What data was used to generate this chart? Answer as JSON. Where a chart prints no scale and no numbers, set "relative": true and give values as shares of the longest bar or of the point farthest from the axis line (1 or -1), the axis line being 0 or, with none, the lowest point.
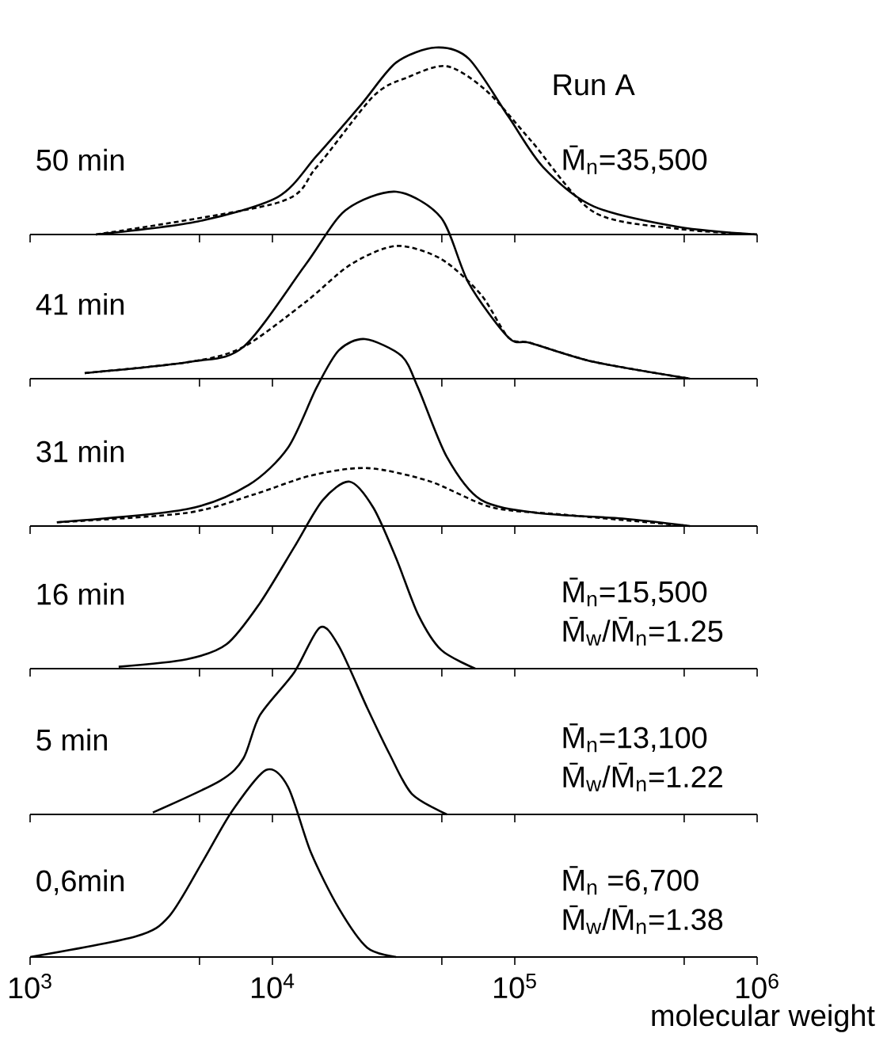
{
  "chart_data": [
    {
      "type": "line",
      "title": "50 min",
      "subtitle": "Run A",
      "annotations": [
        "M̄$_{n}$=35,500"
      ],
      "relative": true,
      "log": "x",
      "xlim": [
        1000,
        1000000
      ],
      "xticks": [
        {
          "value": 1000,
          "label": null
        },
        {
          "value": 5000,
          "label": null
        },
        {
          "value": 10000,
          "label": null
        },
        {
          "value": 50000,
          "label": null
        },
        {
          "value": 100000,
          "label": null
        },
        {
          "value": 500000,
          "label": null
        },
        {
          "value": 1000000,
          "label": null
        }
      ],
      "tick_labels": false,
      "series": [
        {
          "color": "#000000",
          "line_style": "solid",
          "x": [
            1870,
            4930,
            10500,
            15200,
            23400,
            32400,
            47100,
            64600,
            94200,
            131000,
            212000,
            475000,
            1000000
          ],
          "values": [
            0,
            0.07,
            0.2,
            0.42,
            0.7,
            0.92,
            1,
            0.94,
            0.63,
            0.36,
            0.15,
            0.04,
            0
          ]
        },
        {
          "color": "#000000",
          "line_style": "dashed",
          "x": [
            1870,
            10500,
            15200,
            26100,
            36000,
            52400,
            76200,
            117000,
            212000,
            475000,
            1000000
          ],
          "values": [
            0,
            0.17,
            0.36,
            0.74,
            0.84,
            0.9,
            0.77,
            0.5,
            0.12,
            0.03,
            0
          ]
        }
      ]
    },
    {
      "type": "line",
      "title": "41 min",
      "relative": true,
      "log": "x",
      "xlim": [
        1000,
        1000000
      ],
      "xticks": [
        {
          "value": 1000,
          "label": null
        },
        {
          "value": 5000,
          "label": null
        },
        {
          "value": 10000,
          "label": null
        },
        {
          "value": 50000,
          "label": null
        },
        {
          "value": 100000,
          "label": null
        },
        {
          "value": 500000,
          "label": null
        },
        {
          "value": 1000000,
          "label": null
        }
      ],
      "tick_labels": false,
      "series": [
        {
          "color": "#000000",
          "line_style": "solid",
          "x": [
            1680,
            4570,
            7590,
            13700,
            20000,
            32400,
            49700,
            64600,
            94200,
            117000,
            212000,
            528000
          ],
          "values": [
            0.03,
            0.09,
            0.17,
            0.61,
            0.9,
            1,
            0.86,
            0.51,
            0.22,
            0.19,
            0.09,
            0
          ]
        },
        {
          "color": "#000000",
          "line_style": "dashed",
          "x": [
            1680,
            4570,
            7590,
            13700,
            21000,
            32400,
            49700,
            72500,
            94200,
            117000,
            212000,
            528000
          ],
          "values": [
            0.03,
            0.09,
            0.17,
            0.41,
            0.61,
            0.71,
            0.64,
            0.45,
            0.22,
            0.19,
            0.09,
            0
          ]
        }
      ]
    },
    {
      "type": "line",
      "title": "31 min",
      "relative": true,
      "log": "x",
      "xlim": [
        1000,
        1000000
      ],
      "xticks": [
        {
          "value": 1000,
          "label": null
        },
        {
          "value": 5000,
          "label": null
        },
        {
          "value": 10000,
          "label": null
        },
        {
          "value": 50000,
          "label": null
        },
        {
          "value": 100000,
          "label": null
        },
        {
          "value": 500000,
          "label": null
        },
        {
          "value": 1000000,
          "label": null
        }
      ],
      "tick_labels": false,
      "series": [
        {
          "color": "#000000",
          "line_style": "solid",
          "x": [
            1290,
            4420,
            7980,
            11600,
            15200,
            18800,
            24100,
            34100,
            39900,
            52400,
            72500,
            124000,
            278000,
            528000
          ],
          "values": [
            0.02,
            0.09,
            0.22,
            0.42,
            0.74,
            0.94,
            1,
            0.91,
            0.74,
            0.37,
            0.14,
            0.07,
            0.04,
            0
          ]
        },
        {
          "color": "#000000",
          "line_style": "dashed",
          "x": [
            1290,
            4420,
            8430,
            14400,
            24600,
            44400,
            80700,
            162000,
            528000
          ],
          "values": [
            0.02,
            0.07,
            0.17,
            0.27,
            0.31,
            0.24,
            0.1,
            0.06,
            0
          ]
        }
      ]
    },
    {
      "type": "line",
      "title": "16 min",
      "annotations": [
        "M̄$_{n}$=15,500",
        "M̄$_{w}$/M̄$_{n}$=1.25"
      ],
      "relative": true,
      "log": "x",
      "xlim": [
        1000,
        1000000
      ],
      "xticks": [
        {
          "value": 1000,
          "label": null
        },
        {
          "value": 5000,
          "label": null
        },
        {
          "value": 10000,
          "label": null
        },
        {
          "value": 50000,
          "label": null
        },
        {
          "value": 100000,
          "label": null
        },
        {
          "value": 500000,
          "label": null
        },
        {
          "value": 1000000,
          "label": null
        }
      ],
      "tick_labels": false,
      "series": [
        {
          "color": "#000000",
          "line_style": "solid",
          "x": [
            2320,
            4420,
            6460,
            8870,
            12300,
            16100,
            20800,
            26100,
            32400,
            39900,
            49700,
            68700
          ],
          "values": [
            0.01,
            0.05,
            0.13,
            0.35,
            0.65,
            0.9,
            1,
            0.86,
            0.59,
            0.29,
            0.1,
            0
          ]
        }
      ]
    },
    {
      "type": "line",
      "title": "5 min",
      "annotations": [
        "M̄$_{n}$=13,100",
        "M̄$_{w}$/M̄$_{n}$=1.22"
      ],
      "relative": true,
      "log": "x",
      "xlim": [
        1000,
        1000000
      ],
      "xticks": [
        {
          "value": 1000,
          "label": null
        },
        {
          "value": 5000,
          "label": null
        },
        {
          "value": 10000,
          "label": null
        },
        {
          "value": 50000,
          "label": null
        },
        {
          "value": 100000,
          "label": null
        },
        {
          "value": 500000,
          "label": null
        },
        {
          "value": 1000000,
          "label": null
        }
      ],
      "tick_labels": false,
      "series": [
        {
          "color": "#000000",
          "line_style": "solid",
          "x": [
            3210,
            6080,
            7590,
            8870,
            12300,
            15700,
            18800,
            24600,
            30500,
            37600,
            52400
          ],
          "values": [
            0.01,
            0.18,
            0.3,
            0.53,
            0.76,
            1,
            0.9,
            0.57,
            0.32,
            0.11,
            0
          ]
        }
      ]
    },
    {
      "type": "line",
      "title": "0,6min",
      "annotations": [
        "M̄$_{n}$ =6,700",
        "M̄$_{w}$/M̄$_{n}$=1.38"
      ],
      "xlabel": "molecular weight",
      "relative": true,
      "log": "x",
      "xlim": [
        1000,
        1000000
      ],
      "xticks": [
        {
          "value": 1000,
          "label": "10$^{3}$"
        },
        {
          "value": 5000,
          "label": null
        },
        {
          "value": 10000,
          "label": "10$^{4}$"
        },
        {
          "value": 50000,
          "label": null
        },
        {
          "value": 100000,
          "label": "10$^{5}$"
        },
        {
          "value": 500000,
          "label": null
        },
        {
          "value": 1000000,
          "label": "10$^{6}$"
        }
      ],
      "tick_labels": "x",
      "series": [
        {
          "color": "#000000",
          "line_style": "solid",
          "x": [
            1000,
            2730,
            3760,
            5200,
            6810,
            9400,
            11600,
            14400,
            18800,
            24600,
            32400
          ],
          "values": [
            0,
            0.11,
            0.22,
            0.52,
            0.78,
            1,
            0.91,
            0.56,
            0.26,
            0.05,
            0
          ]
        }
      ]
    }
  ]
}
